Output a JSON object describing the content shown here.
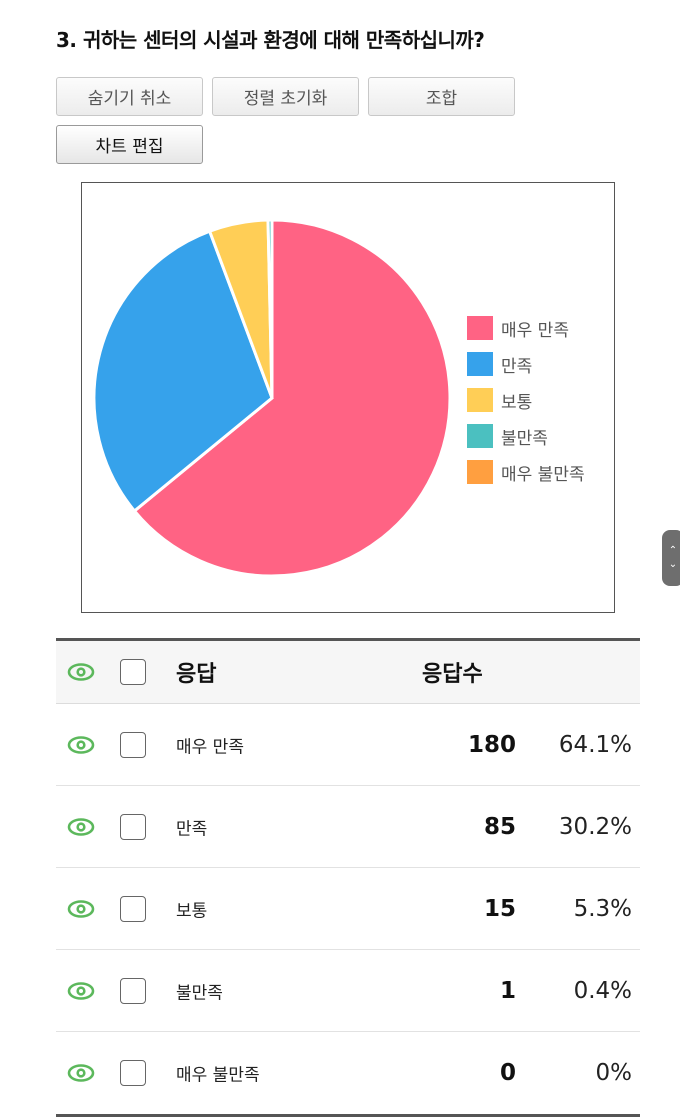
{
  "question": "3. 귀하는 센터의 시설과 환경에 대해 만족하십니까?",
  "toolbar": {
    "unhide_label": "숨기기 취소",
    "reset_sort_label": "정렬 초기화",
    "combine_label": "조합",
    "edit_chart_label": "차트 편집"
  },
  "chart_data": {
    "type": "pie",
    "categories": [
      "매우 만족",
      "만족",
      "보통",
      "불만족",
      "매우 불만족"
    ],
    "values": [
      180,
      85,
      15,
      1,
      0
    ],
    "colors": [
      "#ff6384",
      "#36a2eb",
      "#ffce56",
      "#4bc0c0",
      "#ff9f40"
    ],
    "legend_position": "right"
  },
  "scroll": {
    "up_icon": "chevron-up-icon",
    "down_icon": "chevron-down-icon"
  },
  "table": {
    "headers": {
      "response": "응답",
      "count": "응답수"
    },
    "rows": [
      {
        "label": "매우 만족",
        "count": "180",
        "percent": "64.1%"
      },
      {
        "label": "만족",
        "count": "85",
        "percent": "30.2%"
      },
      {
        "label": "보통",
        "count": "15",
        "percent": "5.3%"
      },
      {
        "label": "불만족",
        "count": "1",
        "percent": "0.4%"
      },
      {
        "label": "매우 불만족",
        "count": "0",
        "percent": "0%"
      }
    ],
    "eye_icon": "eye-icon",
    "eye_color": "#5cb85c"
  }
}
